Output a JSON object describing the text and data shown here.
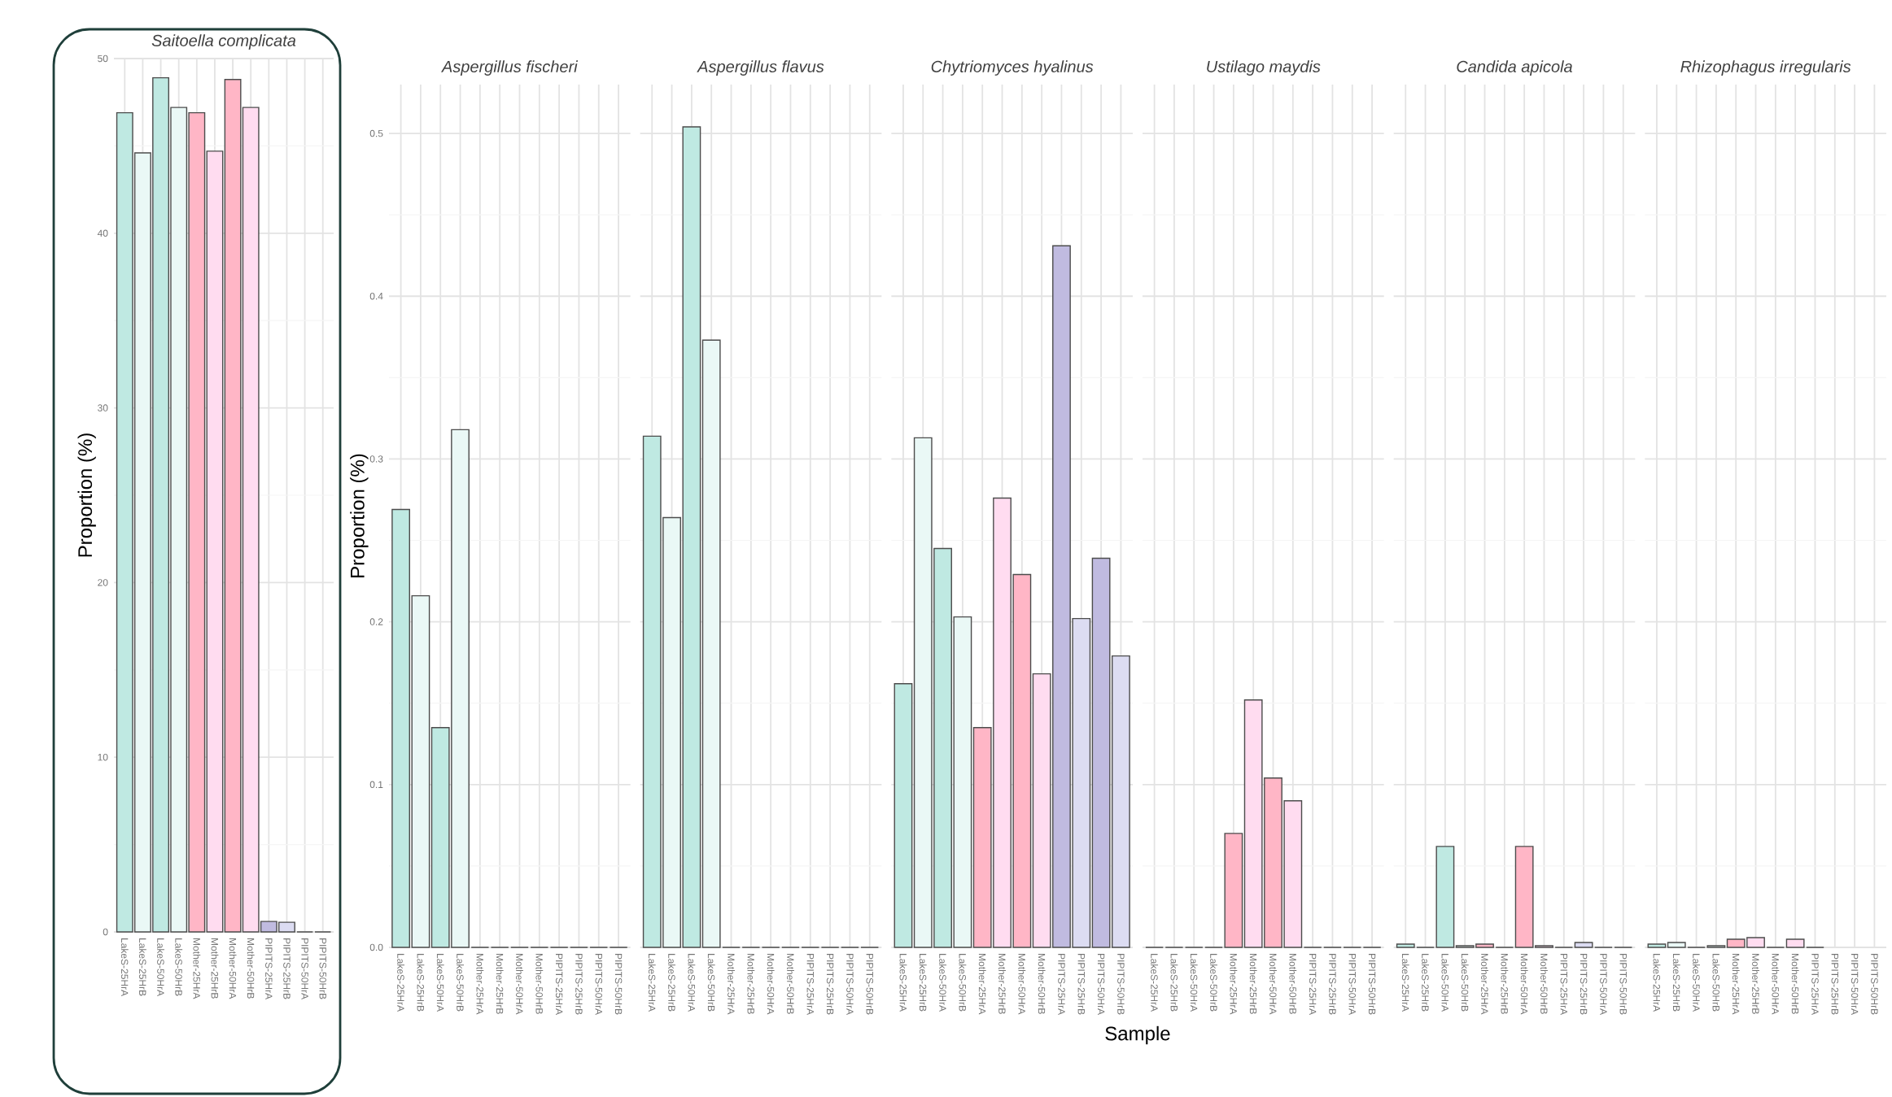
{
  "chart_data": [
    {
      "type": "bar",
      "title": "Saitoella complicata",
      "ylabel": "Proportion (%)",
      "categories": [
        "LakeS-25HrA",
        "LakeS-25HrB",
        "LakeS-50HrA",
        "LakeS-50HrB",
        "Mother-25HrA",
        "Mother-25HrB",
        "Mother-50HrA",
        "Mother-50HrB",
        "PIPITS-25HrA",
        "PIPITS-25HrB",
        "PIPITS-50HrA",
        "PIPITS-50HrB"
      ],
      "values": [
        46.9,
        44.6,
        48.9,
        47.2,
        46.9,
        44.7,
        48.8,
        47.2,
        0.6,
        0.55,
        0,
        0
      ],
      "colors": [
        "#bfe9e2",
        "#eaf8f6",
        "#bfe9e2",
        "#eaf8f6",
        "#ffb6c6",
        "#ffdcf0",
        "#ffb6c6",
        "#ffdcf0",
        "#c0bbe0",
        "#dcdcf2",
        "#c0bbe0",
        "#dcdcf2"
      ],
      "ylim": [
        0,
        50
      ],
      "yticks": [
        0,
        10,
        20,
        30,
        40,
        50
      ],
      "grid": true
    },
    {
      "type": "bar",
      "title": "Aspergillus fischeri",
      "ylabel": "Proportion (%)",
      "categories": [
        "LakeS-25HrA",
        "LakeS-25HrB",
        "LakeS-50HrA",
        "LakeS-50HrB",
        "Mother-25HrA",
        "Mother-25HrB",
        "Mother-50HrA",
        "Mother-50HrB",
        "PIPITS-25HrA",
        "PIPITS-25HrB",
        "PIPITS-50HrA",
        "PIPITS-50HrB"
      ],
      "values": [
        0.269,
        0.216,
        0.135,
        0.318,
        0,
        0,
        0,
        0,
        0,
        0,
        0,
        0
      ],
      "colors": [
        "#bfe9e2",
        "#eaf8f6",
        "#bfe9e2",
        "#eaf8f6",
        "#ffb6c6",
        "#ffdcf0",
        "#ffb6c6",
        "#ffdcf0",
        "#c0bbe0",
        "#dcdcf2",
        "#c0bbe0",
        "#dcdcf2"
      ],
      "ylim": [
        0,
        0.53
      ],
      "yticks": [
        {
          "value": 0,
          "label": "0.0"
        },
        0.1,
        0.2,
        0.3,
        0.4,
        0.5
      ],
      "grid": true
    },
    {
      "type": "bar",
      "title": "Aspergillus flavus",
      "categories": [
        "LakeS-25HrA",
        "LakeS-25HrB",
        "LakeS-50HrA",
        "LakeS-50HrB",
        "Mother-25HrA",
        "Mother-25HrB",
        "Mother-50HrA",
        "Mother-50HrB",
        "PIPITS-25HrA",
        "PIPITS-25HrB",
        "PIPITS-50HrA",
        "PIPITS-50HrB"
      ],
      "values": [
        0.314,
        0.264,
        0.504,
        0.373,
        0,
        0,
        0,
        0,
        0,
        0,
        0,
        0
      ],
      "colors": [
        "#bfe9e2",
        "#eaf8f6",
        "#bfe9e2",
        "#eaf8f6",
        "#ffb6c6",
        "#ffdcf0",
        "#ffb6c6",
        "#ffdcf0",
        "#c0bbe0",
        "#dcdcf2",
        "#c0bbe0",
        "#dcdcf2"
      ],
      "ylim": [
        0,
        0.53
      ],
      "yticks": [
        0,
        0.1,
        0.2,
        0.3,
        0.4,
        0.5
      ],
      "grid": true,
      "tick_labels": "x"
    },
    {
      "type": "bar",
      "title": "Chytriomyces hyalinus",
      "xlabel": "Sample",
      "categories": [
        "LakeS-25HrA",
        "LakeS-25HrB",
        "LakeS-50HrA",
        "LakeS-50HrB",
        "Mother-25HrA",
        "Mother-25HrB",
        "Mother-50HrA",
        "Mother-50HrB",
        "PIPITS-25HrA",
        "PIPITS-25HrB",
        "PIPITS-50HrA",
        "PIPITS-50HrB"
      ],
      "values": [
        0.162,
        0.313,
        0.245,
        0.203,
        0.135,
        0.276,
        0.229,
        0.168,
        0.431,
        0.202,
        0.239,
        0.179
      ],
      "colors": [
        "#bfe9e2",
        "#eaf8f6",
        "#bfe9e2",
        "#eaf8f6",
        "#ffb6c6",
        "#ffdcf0",
        "#ffb6c6",
        "#ffdcf0",
        "#c0bbe0",
        "#dcdcf2",
        "#c0bbe0",
        "#dcdcf2"
      ],
      "ylim": [
        0,
        0.53
      ],
      "yticks": [
        0,
        0.1,
        0.2,
        0.3,
        0.4,
        0.5
      ],
      "grid": true,
      "tick_labels": "x"
    },
    {
      "type": "bar",
      "title": "Ustilago maydis",
      "categories": [
        "LakeS-25HrA",
        "LakeS-25HrB",
        "LakeS-50HrA",
        "LakeS-50HrB",
        "Mother-25HrA",
        "Mother-25HrB",
        "Mother-50HrA",
        "Mother-50HrB",
        "PIPITS-25HrA",
        "PIPITS-25HrB",
        "PIPITS-50HrA",
        "PIPITS-50HrB"
      ],
      "values": [
        0,
        0,
        0,
        0,
        0.07,
        0.152,
        0.104,
        0.09,
        0,
        0,
        0,
        0
      ],
      "colors": [
        "#bfe9e2",
        "#eaf8f6",
        "#bfe9e2",
        "#eaf8f6",
        "#ffb6c6",
        "#ffdcf0",
        "#ffb6c6",
        "#ffdcf0",
        "#c0bbe0",
        "#dcdcf2",
        "#c0bbe0",
        "#dcdcf2"
      ],
      "ylim": [
        0,
        0.53
      ],
      "yticks": [
        0,
        0.1,
        0.2,
        0.3,
        0.4,
        0.5
      ],
      "grid": true,
      "tick_labels": "x"
    },
    {
      "type": "bar",
      "title": "Candida apicola",
      "categories": [
        "LakeS-25HrA",
        "LakeS-25HrB",
        "LakeS-50HrA",
        "LakeS-50HrB",
        "Mother-25HrA",
        "Mother-25HrB",
        "Mother-50HrA",
        "Mother-50HrB",
        "PIPITS-25HrA",
        "PIPITS-25HrB",
        "PIPITS-50HrA",
        "PIPITS-50HrB"
      ],
      "values": [
        0.002,
        0,
        0.062,
        0.001,
        0.002,
        0,
        0.062,
        0.001,
        0,
        0.003,
        0,
        0
      ],
      "colors": [
        "#bfe9e2",
        "#eaf8f6",
        "#bfe9e2",
        "#eaf8f6",
        "#ffb6c6",
        "#ffdcf0",
        "#ffb6c6",
        "#ffdcf0",
        "#c0bbe0",
        "#dcdcf2",
        "#c0bbe0",
        "#dcdcf2"
      ],
      "ylim": [
        0,
        0.53
      ],
      "yticks": [
        0,
        0.1,
        0.2,
        0.3,
        0.4,
        0.5
      ],
      "grid": true,
      "tick_labels": "x"
    },
    {
      "type": "bar",
      "title": "Rhizophagus irregularis",
      "categories": [
        "LakeS-25HrA",
        "LakeS-25HrB",
        "LakeS-50HrA",
        "LakeS-50HrB",
        "Mother-25HrA",
        "Mother-25HrB",
        "Mother-50HrA",
        "Mother-50HrB",
        "PIPITS-25HrA",
        "PIPITS-25HrB",
        "PIPITS-50HrA",
        "PIPITS-50HrB"
      ],
      "values": [
        0.002,
        0.003,
        0,
        0.001,
        0.005,
        0.006,
        0,
        0.005,
        0,
        null,
        null,
        null
      ],
      "colors": [
        "#bfe9e2",
        "#eaf8f6",
        "#bfe9e2",
        "#eaf8f6",
        "#ffb6c6",
        "#ffdcf0",
        "#ffb6c6",
        "#ffdcf0",
        "#c0bbe0",
        "#dcdcf2",
        "#c0bbe0",
        "#dcdcf2"
      ],
      "ylim": [
        0,
        0.53
      ],
      "yticks": [
        0,
        0.1,
        0.2,
        0.3,
        0.4,
        0.5
      ],
      "grid": true,
      "tick_labels": "x"
    }
  ]
}
